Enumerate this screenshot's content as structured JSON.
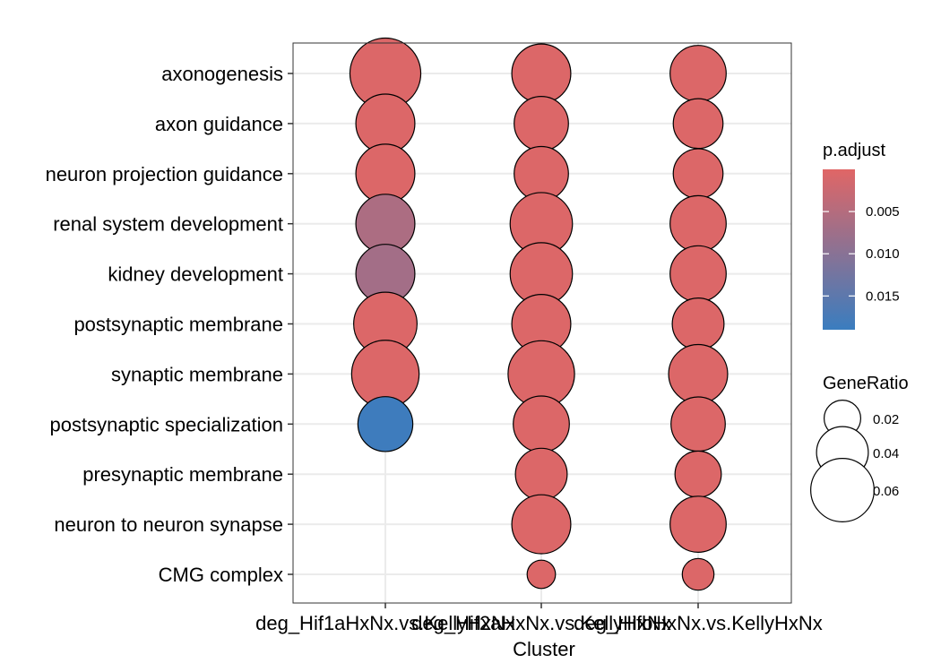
{
  "chart_data": {
    "type": "scatter",
    "subtype": "dot-plot",
    "xlabel": "Cluster",
    "ylabel": "",
    "grid": true,
    "legend_position": "right",
    "clusters": [
      "deg_Hif1aHxNx.vs.KellyHxNx",
      "deg_Hif2aHxNx.vs.KellyHxNx",
      "deg_HifbHxNx.vs.KellyHxNx"
    ],
    "terms": [
      "axonogenesis",
      "axon guidance",
      "neuron projection guidance",
      "renal system development",
      "kidney development",
      "postsynaptic membrane",
      "synaptic membrane",
      "postsynaptic specialization",
      "presynaptic membrane",
      "neuron to neuron synapse",
      "CMG complex"
    ],
    "points": [
      {
        "cluster": "deg_Hif1aHxNx.vs.KellyHxNx",
        "term": "axonogenesis",
        "gene_ratio": 0.075,
        "p_adjust": 0.0005
      },
      {
        "cluster": "deg_Hif1aHxNx.vs.KellyHxNx",
        "term": "axon guidance",
        "gene_ratio": 0.052,
        "p_adjust": 0.0005
      },
      {
        "cluster": "deg_Hif1aHxNx.vs.KellyHxNx",
        "term": "neuron projection guidance",
        "gene_ratio": 0.052,
        "p_adjust": 0.0005
      },
      {
        "cluster": "deg_Hif1aHxNx.vs.KellyHxNx",
        "term": "renal system development",
        "gene_ratio": 0.052,
        "p_adjust": 0.006
      },
      {
        "cluster": "deg_Hif1aHxNx.vs.KellyHxNx",
        "term": "kidney development",
        "gene_ratio": 0.052,
        "p_adjust": 0.007
      },
      {
        "cluster": "deg_Hif1aHxNx.vs.KellyHxNx",
        "term": "postsynaptic membrane",
        "gene_ratio": 0.06,
        "p_adjust": 0.0005
      },
      {
        "cluster": "deg_Hif1aHxNx.vs.KellyHxNx",
        "term": "synaptic membrane",
        "gene_ratio": 0.068,
        "p_adjust": 0.0005
      },
      {
        "cluster": "deg_Hif1aHxNx.vs.KellyHxNx",
        "term": "postsynaptic specialization",
        "gene_ratio": 0.045,
        "p_adjust": 0.0185
      },
      {
        "cluster": "deg_Hif2aHxNx.vs.KellyHxNx",
        "term": "axonogenesis",
        "gene_ratio": 0.052,
        "p_adjust": 0.0005
      },
      {
        "cluster": "deg_Hif2aHxNx.vs.KellyHxNx",
        "term": "axon guidance",
        "gene_ratio": 0.044,
        "p_adjust": 0.0005
      },
      {
        "cluster": "deg_Hif2aHxNx.vs.KellyHxNx",
        "term": "neuron projection guidance",
        "gene_ratio": 0.044,
        "p_adjust": 0.0005
      },
      {
        "cluster": "deg_Hif2aHxNx.vs.KellyHxNx",
        "term": "renal system development",
        "gene_ratio": 0.058,
        "p_adjust": 0.0005
      },
      {
        "cluster": "deg_Hif2aHxNx.vs.KellyHxNx",
        "term": "kidney development",
        "gene_ratio": 0.058,
        "p_adjust": 0.0005
      },
      {
        "cluster": "deg_Hif2aHxNx.vs.KellyHxNx",
        "term": "postsynaptic membrane",
        "gene_ratio": 0.052,
        "p_adjust": 0.0005
      },
      {
        "cluster": "deg_Hif2aHxNx.vs.KellyHxNx",
        "term": "synaptic membrane",
        "gene_ratio": 0.066,
        "p_adjust": 0.0005
      },
      {
        "cluster": "deg_Hif2aHxNx.vs.KellyHxNx",
        "term": "postsynaptic specialization",
        "gene_ratio": 0.047,
        "p_adjust": 0.0005
      },
      {
        "cluster": "deg_Hif2aHxNx.vs.KellyHxNx",
        "term": "presynaptic membrane",
        "gene_ratio": 0.04,
        "p_adjust": 0.0005
      },
      {
        "cluster": "deg_Hif2aHxNx.vs.KellyHxNx",
        "term": "neuron to neuron synapse",
        "gene_ratio": 0.052,
        "p_adjust": 0.0005
      },
      {
        "cluster": "deg_Hif2aHxNx.vs.KellyHxNx",
        "term": "CMG complex",
        "gene_ratio": 0.012,
        "p_adjust": 0.0005
      },
      {
        "cluster": "deg_HifbHxNx.vs.KellyHxNx",
        "term": "axonogenesis",
        "gene_ratio": 0.047,
        "p_adjust": 0.0005
      },
      {
        "cluster": "deg_HifbHxNx.vs.KellyHxNx",
        "term": "axon guidance",
        "gene_ratio": 0.037,
        "p_adjust": 0.0005
      },
      {
        "cluster": "deg_HifbHxNx.vs.KellyHxNx",
        "term": "neuron projection guidance",
        "gene_ratio": 0.037,
        "p_adjust": 0.0005
      },
      {
        "cluster": "deg_HifbHxNx.vs.KellyHxNx",
        "term": "renal system development",
        "gene_ratio": 0.047,
        "p_adjust": 0.0005
      },
      {
        "cluster": "deg_HifbHxNx.vs.KellyHxNx",
        "term": "kidney development",
        "gene_ratio": 0.047,
        "p_adjust": 0.0005
      },
      {
        "cluster": "deg_HifbHxNx.vs.KellyHxNx",
        "term": "postsynaptic membrane",
        "gene_ratio": 0.04,
        "p_adjust": 0.0005
      },
      {
        "cluster": "deg_HifbHxNx.vs.KellyHxNx",
        "term": "synaptic membrane",
        "gene_ratio": 0.052,
        "p_adjust": 0.0005
      },
      {
        "cluster": "deg_HifbHxNx.vs.KellyHxNx",
        "term": "postsynaptic specialization",
        "gene_ratio": 0.044,
        "p_adjust": 0.0005
      },
      {
        "cluster": "deg_HifbHxNx.vs.KellyHxNx",
        "term": "presynaptic membrane",
        "gene_ratio": 0.032,
        "p_adjust": 0.0005
      },
      {
        "cluster": "deg_HifbHxNx.vs.KellyHxNx",
        "term": "neuron to neuron synapse",
        "gene_ratio": 0.047,
        "p_adjust": 0.0005
      },
      {
        "cluster": "deg_HifbHxNx.vs.KellyHxNx",
        "term": "CMG complex",
        "gene_ratio": 0.015,
        "p_adjust": 0.0005
      }
    ],
    "legend_color": {
      "title": "p.adjust",
      "range": [
        0.0,
        0.019
      ],
      "ticks": [
        0.005,
        0.01,
        0.015
      ],
      "tick_labels": [
        "0.005",
        "0.010",
        "0.015"
      ],
      "low_color": "#e06666",
      "high_color": "#3a7dbf"
    },
    "legend_size": {
      "title": "GeneRatio",
      "values": [
        0.02,
        0.04,
        0.06
      ],
      "labels": [
        "0.02",
        "0.04",
        "0.06"
      ]
    },
    "colors": {
      "grid": "#ebebeb",
      "panel_border": "#333333",
      "point_stroke": "#000000"
    }
  }
}
